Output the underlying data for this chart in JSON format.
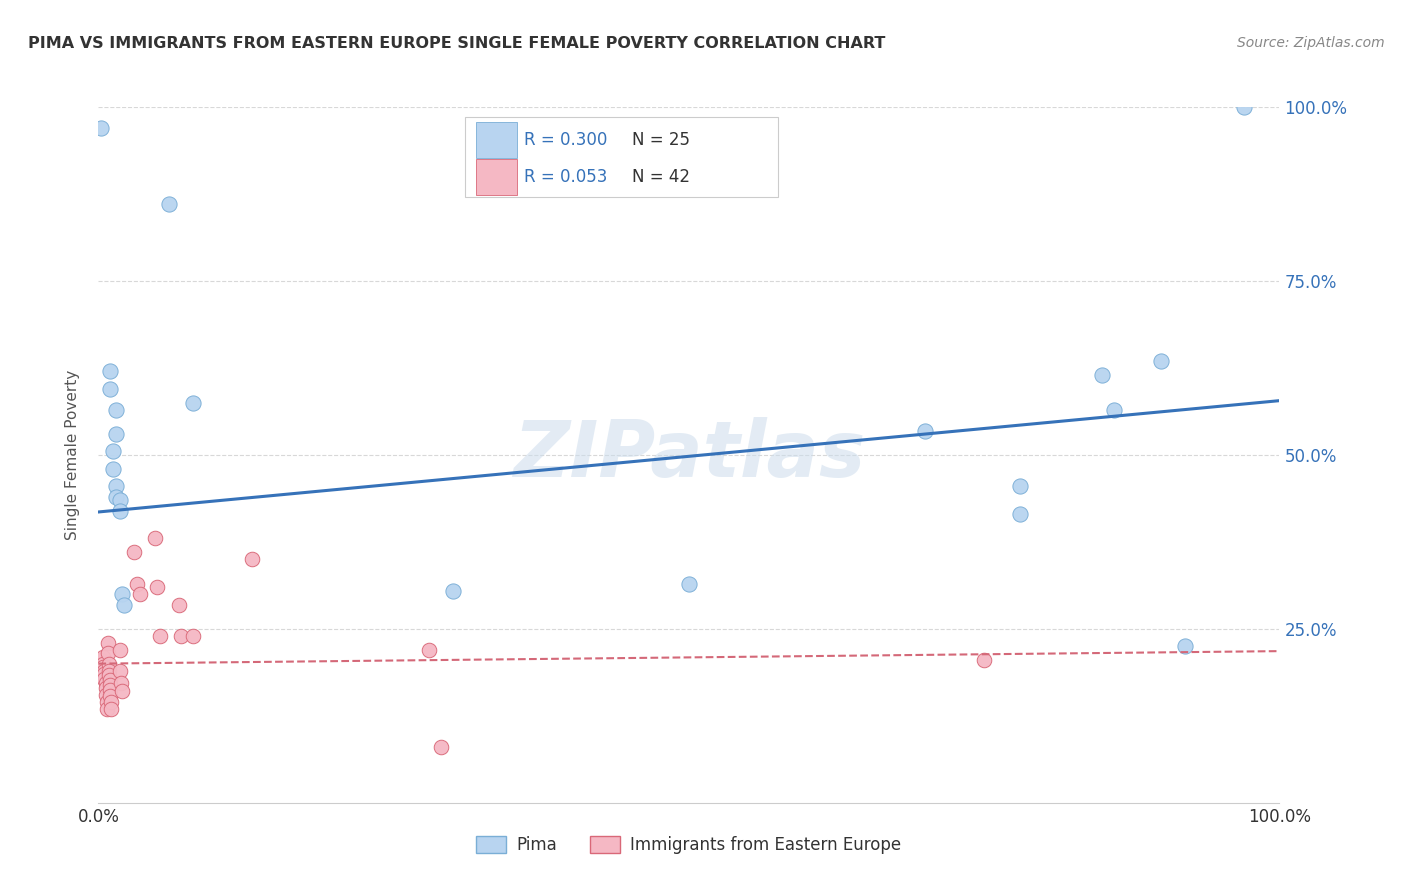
{
  "title": "PIMA VS IMMIGRANTS FROM EASTERN EUROPE SINGLE FEMALE POVERTY CORRELATION CHART",
  "source": "Source: ZipAtlas.com",
  "ylabel": "Single Female Poverty",
  "xlim": [
    0,
    1
  ],
  "ylim": [
    0,
    1
  ],
  "background_color": "#ffffff",
  "grid_color": "#c8c8c8",
  "watermark": "ZIPatlas",
  "pima_color": "#b8d4f0",
  "pima_edge_color": "#7aaed6",
  "pima_label": "Pima",
  "pima_R": "R = 0.300",
  "pima_N": "N = 25",
  "pima_scatter": [
    [
      0.002,
      0.97
    ],
    [
      0.01,
      0.62
    ],
    [
      0.01,
      0.595
    ],
    [
      0.015,
      0.565
    ],
    [
      0.015,
      0.53
    ],
    [
      0.012,
      0.505
    ],
    [
      0.012,
      0.48
    ],
    [
      0.015,
      0.455
    ],
    [
      0.015,
      0.44
    ],
    [
      0.018,
      0.435
    ],
    [
      0.018,
      0.42
    ],
    [
      0.02,
      0.3
    ],
    [
      0.022,
      0.285
    ],
    [
      0.06,
      0.86
    ],
    [
      0.08,
      0.575
    ],
    [
      0.3,
      0.305
    ],
    [
      0.5,
      0.315
    ],
    [
      0.7,
      0.535
    ],
    [
      0.78,
      0.455
    ],
    [
      0.78,
      0.415
    ],
    [
      0.85,
      0.615
    ],
    [
      0.86,
      0.565
    ],
    [
      0.9,
      0.635
    ],
    [
      0.92,
      0.225
    ],
    [
      0.97,
      1.0
    ]
  ],
  "pima_line_x": [
    0.0,
    1.0
  ],
  "pima_line_y": [
    0.418,
    0.578
  ],
  "pima_line_color": "#3672b9",
  "ee_color": "#f5b8c4",
  "ee_edge_color": "#d96878",
  "ee_label": "Immigrants from Eastern Europe",
  "ee_R": "R = 0.053",
  "ee_N": "N = 42",
  "ee_scatter": [
    [
      0.002,
      0.205
    ],
    [
      0.002,
      0.19
    ],
    [
      0.002,
      0.185
    ],
    [
      0.004,
      0.21
    ],
    [
      0.004,
      0.2
    ],
    [
      0.004,
      0.195
    ],
    [
      0.005,
      0.19
    ],
    [
      0.005,
      0.185
    ],
    [
      0.005,
      0.178
    ],
    [
      0.006,
      0.172
    ],
    [
      0.006,
      0.165
    ],
    [
      0.006,
      0.155
    ],
    [
      0.007,
      0.145
    ],
    [
      0.007,
      0.135
    ],
    [
      0.008,
      0.23
    ],
    [
      0.008,
      0.215
    ],
    [
      0.009,
      0.2
    ],
    [
      0.009,
      0.19
    ],
    [
      0.009,
      0.183
    ],
    [
      0.01,
      0.177
    ],
    [
      0.01,
      0.17
    ],
    [
      0.01,
      0.162
    ],
    [
      0.01,
      0.153
    ],
    [
      0.011,
      0.145
    ],
    [
      0.011,
      0.135
    ],
    [
      0.018,
      0.22
    ],
    [
      0.018,
      0.19
    ],
    [
      0.019,
      0.172
    ],
    [
      0.02,
      0.16
    ],
    [
      0.03,
      0.36
    ],
    [
      0.033,
      0.315
    ],
    [
      0.035,
      0.3
    ],
    [
      0.048,
      0.38
    ],
    [
      0.05,
      0.31
    ],
    [
      0.052,
      0.24
    ],
    [
      0.068,
      0.285
    ],
    [
      0.07,
      0.24
    ],
    [
      0.08,
      0.24
    ],
    [
      0.13,
      0.35
    ],
    [
      0.28,
      0.22
    ],
    [
      0.29,
      0.08
    ],
    [
      0.75,
      0.205
    ]
  ],
  "ee_line_x": [
    0.0,
    1.0
  ],
  "ee_line_y": [
    0.2,
    0.218
  ],
  "ee_line_color": "#d46878",
  "legend_R_color": "#3672b9",
  "legend_N_color": "#333333",
  "legend_border_color": "#cccccc"
}
